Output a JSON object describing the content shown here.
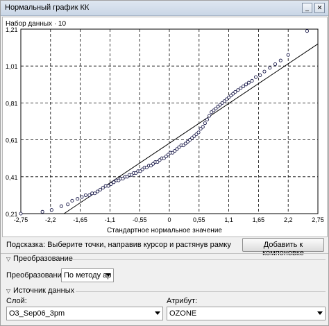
{
  "window": {
    "title": "Нормальный график КК",
    "minimize_symbol": "_",
    "close_symbol": "✕"
  },
  "chart_data": {
    "type": "scatter",
    "title": "Набор данных · 10",
    "xlabel": "Стандартное нормальное значение",
    "ylabel": "",
    "xlim": [
      -2.75,
      2.75
    ],
    "ylim": [
      0.21,
      1.21
    ],
    "x_ticks": [
      -2.75,
      -2.2,
      -1.65,
      -1.1,
      -0.55,
      0,
      0.55,
      1.1,
      1.65,
      2.2,
      2.75
    ],
    "x_tick_labels": [
      "-2,75",
      "-2,2",
      "-1,65",
      "-1,1",
      "-0,55",
      "0",
      "0,55",
      "1,1",
      "1,65",
      "2,2",
      "2,75"
    ],
    "y_ticks": [
      0.21,
      0.41,
      0.61,
      0.81,
      1.01,
      1.21
    ],
    "y_tick_labels": [
      "0,21",
      "0,41",
      "0,61",
      "0,81",
      "1,01",
      "1,21"
    ],
    "grid": true,
    "reference_line": {
      "x": [
        -1.95,
        2.75
      ],
      "y": [
        0.21,
        1.13
      ]
    },
    "points": [
      [
        -2.75,
        0.21
      ],
      [
        -2.35,
        0.22
      ],
      [
        -2.18,
        0.23
      ],
      [
        -2.0,
        0.25
      ],
      [
        -1.88,
        0.26
      ],
      [
        -1.8,
        0.28
      ],
      [
        -1.7,
        0.29
      ],
      [
        -1.62,
        0.3
      ],
      [
        -1.55,
        0.31
      ],
      [
        -1.48,
        0.31
      ],
      [
        -1.43,
        0.32
      ],
      [
        -1.38,
        0.32
      ],
      [
        -1.33,
        0.33
      ],
      [
        -1.28,
        0.34
      ],
      [
        -1.23,
        0.35
      ],
      [
        -1.18,
        0.36
      ],
      [
        -1.13,
        0.36
      ],
      [
        -1.08,
        0.37
      ],
      [
        -1.03,
        0.38
      ],
      [
        -0.98,
        0.39
      ],
      [
        -0.94,
        0.39
      ],
      [
        -0.9,
        0.4
      ],
      [
        -0.86,
        0.4
      ],
      [
        -0.82,
        0.41
      ],
      [
        -0.78,
        0.41
      ],
      [
        -0.74,
        0.42
      ],
      [
        -0.7,
        0.42
      ],
      [
        -0.66,
        0.43
      ],
      [
        -0.62,
        0.43
      ],
      [
        -0.58,
        0.44
      ],
      [
        -0.54,
        0.44
      ],
      [
        -0.5,
        0.45
      ],
      [
        -0.46,
        0.46
      ],
      [
        -0.42,
        0.46
      ],
      [
        -0.38,
        0.47
      ],
      [
        -0.34,
        0.47
      ],
      [
        -0.3,
        0.48
      ],
      [
        -0.26,
        0.49
      ],
      [
        -0.22,
        0.49
      ],
      [
        -0.18,
        0.5
      ],
      [
        -0.14,
        0.51
      ],
      [
        -0.1,
        0.51
      ],
      [
        -0.06,
        0.52
      ],
      [
        -0.02,
        0.53
      ],
      [
        0.02,
        0.54
      ],
      [
        0.06,
        0.54
      ],
      [
        0.1,
        0.55
      ],
      [
        0.14,
        0.56
      ],
      [
        0.18,
        0.57
      ],
      [
        0.22,
        0.58
      ],
      [
        0.26,
        0.58
      ],
      [
        0.3,
        0.59
      ],
      [
        0.34,
        0.6
      ],
      [
        0.38,
        0.61
      ],
      [
        0.42,
        0.62
      ],
      [
        0.46,
        0.63
      ],
      [
        0.5,
        0.64
      ],
      [
        0.54,
        0.65
      ],
      [
        0.58,
        0.67
      ],
      [
        0.62,
        0.68
      ],
      [
        0.66,
        0.7
      ],
      [
        0.7,
        0.72
      ],
      [
        0.74,
        0.74
      ],
      [
        0.78,
        0.76
      ],
      [
        0.82,
        0.77
      ],
      [
        0.86,
        0.78
      ],
      [
        0.9,
        0.79
      ],
      [
        0.94,
        0.8
      ],
      [
        0.98,
        0.81
      ],
      [
        1.02,
        0.82
      ],
      [
        1.06,
        0.83
      ],
      [
        1.1,
        0.84
      ],
      [
        1.14,
        0.85
      ],
      [
        1.18,
        0.86
      ],
      [
        1.22,
        0.87
      ],
      [
        1.27,
        0.88
      ],
      [
        1.32,
        0.89
      ],
      [
        1.37,
        0.9
      ],
      [
        1.42,
        0.91
      ],
      [
        1.47,
        0.92
      ],
      [
        1.53,
        0.93
      ],
      [
        1.6,
        0.95
      ],
      [
        1.68,
        0.96
      ],
      [
        1.76,
        0.98
      ],
      [
        1.86,
        1.0
      ],
      [
        1.96,
        1.02
      ],
      [
        2.06,
        1.04
      ],
      [
        2.2,
        1.07
      ],
      [
        2.55,
        1.2
      ]
    ]
  },
  "hint": {
    "text": "Подсказка: Выберите точки, направив курсор и растянув рамку",
    "add_button": "Добавить к компоновке"
  },
  "transform": {
    "section_title": "Преобразование",
    "label": "Преобразование:",
    "value": "По методу ар"
  },
  "source": {
    "section_title": "Источник данных",
    "layer_label": "Слой:",
    "layer_value": "O3_Sep06_3pm",
    "attribute_label": "Атрибут:",
    "attribute_value": "OZONE"
  }
}
